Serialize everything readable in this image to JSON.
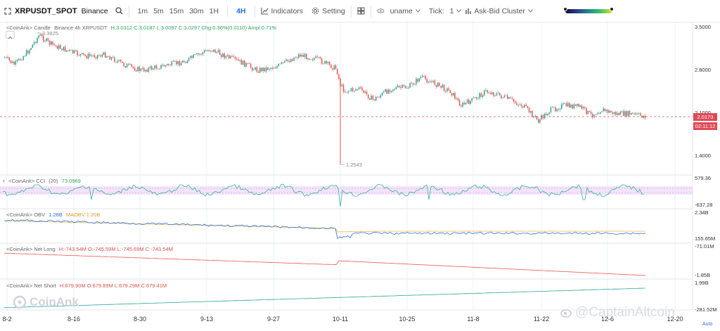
{
  "toolbar": {
    "symbol": "XRPUSDT_SPOT",
    "exchange": "Binance",
    "timeframes": [
      "1m",
      "5m",
      "15m",
      "30m",
      "1H",
      "4H"
    ],
    "active_timeframe": "4H",
    "indicators_label": "Indicators",
    "setting_label": "Setting",
    "unit_label": "uname",
    "tick_label": "Tick:",
    "tick_value": "1",
    "cluster_label": "Ask-Bid Cluster"
  },
  "main_panel": {
    "title": "<CoinAnk> Candle",
    "info": "Binance 4h XRPUSDT",
    "ohlc": "H:3.0312  C:3.0187  L:3.0097  C:3.0297  Chg:0.36%(0.0110)  Ampl:0.71%",
    "high_marker": "3.3825",
    "low_marker": "1.2543",
    "axis": [
      "3.5000",
      "2.8000",
      "2.1000",
      "1.4000"
    ],
    "last_price": "2.0173",
    "countdown": "02:11:12"
  },
  "cci_panel": {
    "title": "<CoinAnk> CCI",
    "params": "(20)",
    "value": "73.0969",
    "axis_top": "579.36",
    "axis_bottom": "-637.28"
  },
  "obv_panel": {
    "title": "<CoinAnk> OBV",
    "obv": "1.28B",
    "maobv": "MAOBV:1.20B",
    "axis_top": "2.34B",
    "axis_bottom": "155.65M"
  },
  "net_long_panel": {
    "title": "<CoinAnk> Net Long",
    "values": "H:-743.54M  O:-745.59M  L:-745.69M  C:-743.54M",
    "axis_top": "-71.01M",
    "axis_bottom": "-1.85B"
  },
  "net_short_panel": {
    "title": "<CoinAnk> Net Short",
    "values": "H:679.90M  O:679.89M  L:679.29M  C:679.41M",
    "axis_top": "1.99B",
    "axis_bottom": "-281.52M"
  },
  "x_axis": [
    "8-2",
    "8-16",
    "8-30",
    "9-13",
    "9-27",
    "10-11",
    "10-25",
    "11-8",
    "11-22",
    "12-6",
    "12-20"
  ],
  "auto_label": "Auto",
  "watermark": "CoinAnk",
  "watermark_user": "@CaptainAltcoin",
  "colors": {
    "up": "#26a69a",
    "down": "#ef5350",
    "accent": "#1e6fe0"
  }
}
